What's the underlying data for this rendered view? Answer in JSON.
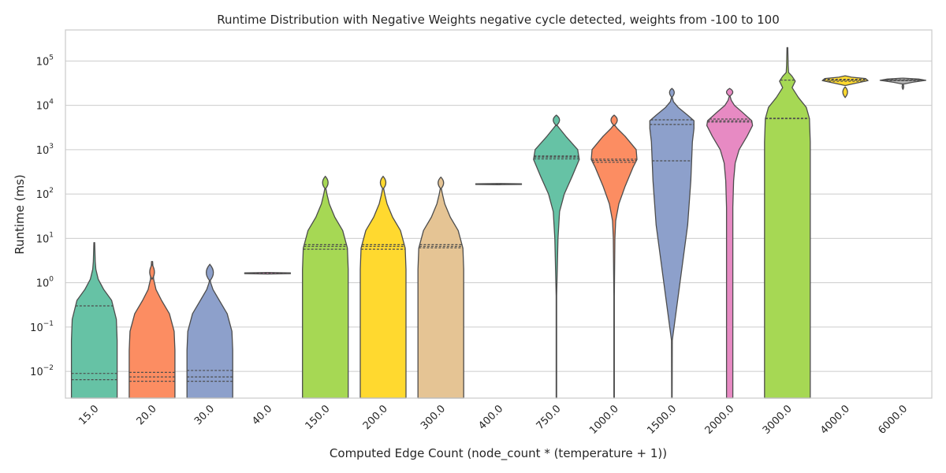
{
  "chart_data": {
    "type": "violin",
    "title": "Runtime Distribution with Negative Weights negative cycle detected, weights from -100 to 100",
    "xlabel": "Computed Edge Count (node_count * (temperature + 1))",
    "ylabel": "Runtime (ms)",
    "yscale": "log",
    "ylim": [
      0.0025,
      500000
    ],
    "grid": "horizontal",
    "legend": "none",
    "y_ticks": [
      {
        "base": "10",
        "exp": "−2",
        "value": 0.01
      },
      {
        "base": "10",
        "exp": "−1",
        "value": 0.1
      },
      {
        "base": "10",
        "exp": "0",
        "value": 1
      },
      {
        "base": "10",
        "exp": "1",
        "value": 10
      },
      {
        "base": "10",
        "exp": "2",
        "value": 100
      },
      {
        "base": "10",
        "exp": "3",
        "value": 1000
      },
      {
        "base": "10",
        "exp": "4",
        "value": 10000
      },
      {
        "base": "10",
        "exp": "5",
        "value": 100000
      }
    ],
    "categories": [
      "15.0",
      "20.0",
      "30.0",
      "40.0",
      "150.0",
      "200.0",
      "300.0",
      "400.0",
      "750.0",
      "1000.0",
      "1500.0",
      "2000.0",
      "3000.0",
      "4000.0",
      "6000.0"
    ],
    "violins": [
      {
        "category": "15.0",
        "color": "#66c2a5",
        "profile": [
          [
            0.0025,
            29
          ],
          [
            0.05,
            29
          ],
          [
            0.15,
            28
          ],
          [
            0.4,
            22
          ],
          [
            0.7,
            12
          ],
          [
            1.2,
            5
          ],
          [
            2,
            2
          ],
          [
            3,
            1.2
          ],
          [
            8,
            0.5
          ]
        ],
        "bulb": null,
        "quartiles": [
          0.0065,
          0.009,
          0.3
        ]
      },
      {
        "category": "20.0",
        "color": "#fc8d62",
        "profile": [
          [
            0.0025,
            29
          ],
          [
            0.03,
            29
          ],
          [
            0.08,
            28
          ],
          [
            0.2,
            22
          ],
          [
            0.4,
            12
          ],
          [
            0.7,
            5
          ],
          [
            1.2,
            2
          ],
          [
            3,
            0.7
          ]
        ],
        "bulb": {
          "center": 1.7,
          "low": 1.2,
          "high": 2.6,
          "half_width": 3
        },
        "quartiles": [
          0.006,
          0.0075,
          0.0095
        ]
      },
      {
        "category": "30.0",
        "color": "#8da0cb",
        "profile": [
          [
            0.0025,
            29
          ],
          [
            0.03,
            29
          ],
          [
            0.08,
            28
          ],
          [
            0.2,
            22
          ],
          [
            0.4,
            12
          ],
          [
            0.7,
            4
          ],
          [
            1,
            1
          ],
          [
            1.2,
            0.4
          ]
        ],
        "bulb": {
          "center": 1.7,
          "low": 1.1,
          "high": 2.6,
          "half_width": 4.5
        },
        "quartiles": [
          0.006,
          0.0075,
          0.0105
        ]
      },
      {
        "category": "40.0",
        "color": "#e78ac3",
        "profile": [
          [
            1.57,
            0.5
          ],
          [
            1.6,
            29
          ],
          [
            1.67,
            29
          ],
          [
            1.7,
            0.5
          ]
        ],
        "bulb": null,
        "quartiles": [
          1.63
        ]
      },
      {
        "category": "150.0",
        "color": "#a6d854",
        "profile": [
          [
            0.0025,
            29
          ],
          [
            2,
            29
          ],
          [
            6,
            28
          ],
          [
            15,
            22
          ],
          [
            30,
            12
          ],
          [
            60,
            5
          ],
          [
            100,
            2
          ],
          [
            130,
            0.8
          ]
        ],
        "bulb": {
          "center": 180,
          "low": 130,
          "high": 250,
          "half_width": 3.5
        },
        "quartiles": [
          5.7,
          6.6,
          7.2
        ]
      },
      {
        "category": "200.0",
        "color": "#ffd92f",
        "profile": [
          [
            0.0025,
            29
          ],
          [
            2,
            29
          ],
          [
            6,
            28
          ],
          [
            15,
            22
          ],
          [
            30,
            12
          ],
          [
            60,
            5
          ],
          [
            100,
            2
          ],
          [
            130,
            0.8
          ]
        ],
        "bulb": {
          "center": 180,
          "low": 130,
          "high": 250,
          "half_width": 3.5
        },
        "quartiles": [
          5.7,
          6.6,
          7.2
        ]
      },
      {
        "category": "300.0",
        "color": "#e5c494",
        "profile": [
          [
            0.0025,
            29
          ],
          [
            2,
            29
          ],
          [
            6,
            28
          ],
          [
            15,
            22
          ],
          [
            30,
            12
          ],
          [
            60,
            5
          ],
          [
            100,
            2
          ],
          [
            130,
            0.8
          ]
        ],
        "bulb": {
          "center": 180,
          "low": 130,
          "high": 240,
          "half_width": 3.5
        },
        "quartiles": [
          6.1,
          6.6,
          7.2
        ]
      },
      {
        "category": "400.0",
        "color": "#b3b3b3",
        "profile": [
          [
            162,
            0.5
          ],
          [
            164,
            29
          ],
          [
            170,
            29
          ],
          [
            172,
            0.5
          ]
        ],
        "bulb": null,
        "quartiles": [
          167
        ]
      },
      {
        "category": "750.0",
        "color": "#66c2a5",
        "profile": [
          [
            0.0025,
            0.3
          ],
          [
            0.5,
            0.3
          ],
          [
            10,
            2
          ],
          [
            40,
            4
          ],
          [
            100,
            10
          ],
          [
            250,
            20
          ],
          [
            600,
            29
          ],
          [
            1000,
            27
          ],
          [
            2000,
            12
          ],
          [
            3000,
            4
          ],
          [
            3500,
            1
          ]
        ],
        "bulb": {
          "center": 4700,
          "low": 3500,
          "high": 6000,
          "half_width": 4
        },
        "quartiles": [
          620,
          680,
          720
        ]
      },
      {
        "category": "1000.0",
        "color": "#fc8d62",
        "profile": [
          [
            0.0025,
            0.3
          ],
          [
            0.5,
            0.3
          ],
          [
            10,
            1
          ],
          [
            25,
            2
          ],
          [
            60,
            6
          ],
          [
            150,
            14
          ],
          [
            400,
            24
          ],
          [
            600,
            29
          ],
          [
            1000,
            28
          ],
          [
            2000,
            14
          ],
          [
            3000,
            4
          ],
          [
            3500,
            1
          ]
        ],
        "bulb": {
          "center": 4700,
          "low": 3500,
          "high": 6000,
          "half_width": 4
        },
        "quartiles": [
          520,
          570,
          610
        ]
      },
      {
        "category": "1500.0",
        "color": "#8da0cb",
        "profile": [
          [
            0.0025,
            0.3
          ],
          [
            0.05,
            0.5
          ],
          [
            20,
            20
          ],
          [
            200,
            24
          ],
          [
            1500,
            26
          ],
          [
            3000,
            28
          ],
          [
            4500,
            28
          ],
          [
            6000,
            20
          ],
          [
            9000,
            8
          ],
          [
            12000,
            2
          ],
          [
            15000,
            0.5
          ]
        ],
        "bulb": {
          "center": 20000,
          "low": 15000,
          "high": 24000,
          "half_width": 3
        },
        "quartiles": [
          560,
          3700,
          4700
        ]
      },
      {
        "category": "2000.0",
        "color": "#e78ac3",
        "profile": [
          [
            0.0025,
            4
          ],
          [
            1,
            4
          ],
          [
            50,
            4
          ],
          [
            200,
            5
          ],
          [
            500,
            7
          ],
          [
            1000,
            12
          ],
          [
            2000,
            22
          ],
          [
            3500,
            29
          ],
          [
            4500,
            28
          ],
          [
            7000,
            16
          ],
          [
            10000,
            6
          ],
          [
            13000,
            2
          ],
          [
            16000,
            0.5
          ]
        ],
        "bulb": {
          "center": 20000,
          "low": 16000,
          "high": 24000,
          "half_width": 4
        },
        "quartiles": [
          4200,
          4500,
          4900
        ]
      },
      {
        "category": "3000.0",
        "color": "#a6d854",
        "profile": [
          [
            0.0025,
            29
          ],
          [
            1500,
            29
          ],
          [
            5000,
            28
          ],
          [
            9000,
            24
          ],
          [
            15000,
            14
          ],
          [
            25000,
            6
          ],
          [
            35000,
            10
          ],
          [
            45000,
            6
          ],
          [
            55000,
            1.5
          ],
          [
            80000,
            1
          ],
          [
            200000,
            0.5
          ]
        ],
        "bulb": null,
        "quartiles": [
          5000,
          5100,
          37000
        ]
      },
      {
        "category": "4000.0",
        "color": "#ffd92f",
        "profile": [
          [
            28000,
            0.5
          ],
          [
            31000,
            12
          ],
          [
            36000,
            29
          ],
          [
            40000,
            26
          ],
          [
            43000,
            8
          ],
          [
            46000,
            0.5
          ]
        ],
        "bulb": {
          "center": 20000,
          "low": 15000,
          "high": 26000,
          "half_width": 3
        },
        "quartiles": [
          35000,
          37000,
          38500
        ]
      },
      {
        "category": "6000.0",
        "color": "#b3b3b3",
        "profile": [
          [
            30000,
            0.5
          ],
          [
            33000,
            12
          ],
          [
            36500,
            29
          ],
          [
            39000,
            20
          ],
          [
            41000,
            0.5
          ]
        ],
        "bulb": {
          "center": 26000,
          "low": 23000,
          "high": 30000,
          "half_width": 1
        },
        "quartiles": [
          36000,
          36800,
          37500
        ]
      }
    ]
  }
}
